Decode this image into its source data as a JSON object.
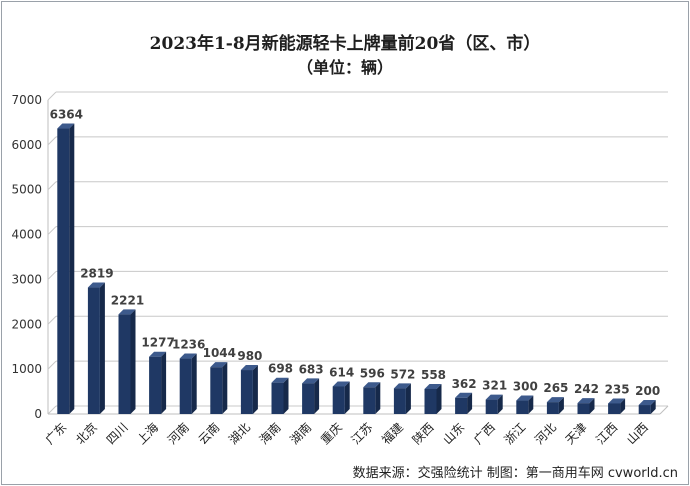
{
  "chart_data": {
    "type": "bar",
    "title": "2023年1-8月新能源轻卡上牌量前20省（区、市）",
    "subtitle": "（单位：辆）",
    "categories": [
      "广东",
      "北京",
      "四川",
      "上海",
      "河南",
      "云南",
      "湖北",
      "海南",
      "湖南",
      "重庆",
      "江苏",
      "福建",
      "陕西",
      "山东",
      "广西",
      "浙江",
      "河北",
      "天津",
      "江西",
      "山西"
    ],
    "values": [
      6364,
      2819,
      2221,
      1277,
      1236,
      1044,
      980,
      698,
      683,
      614,
      596,
      572,
      558,
      362,
      321,
      300,
      265,
      242,
      235,
      200
    ],
    "ylim": [
      0,
      7000
    ],
    "yticks": [
      0,
      1000,
      2000,
      3000,
      4000,
      5000,
      6000,
      7000
    ],
    "grid": true,
    "bar_color": "#1f3864"
  },
  "source_note": "数据来源：交强险统计 制图：第一商用车网 cvworld.cn"
}
